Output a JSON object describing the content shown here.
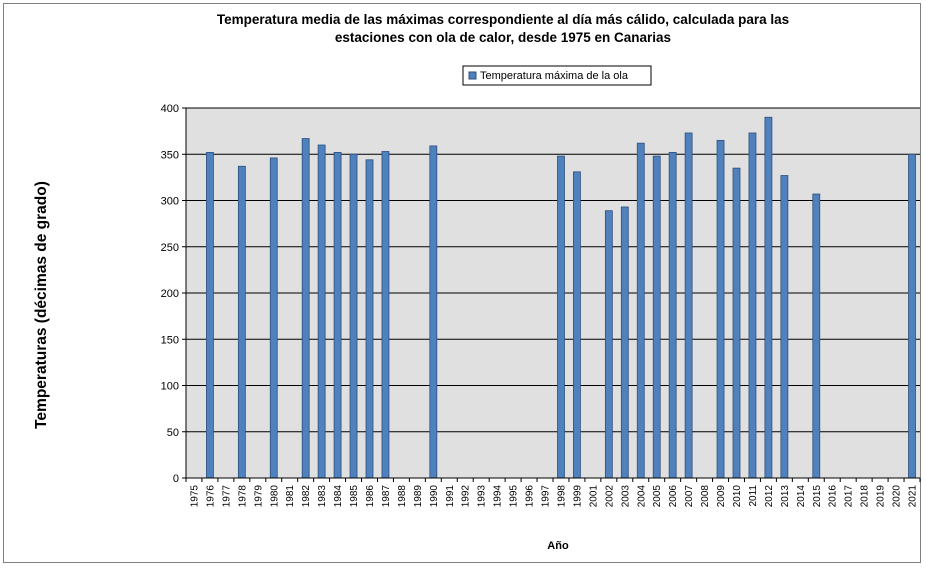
{
  "chart_data": {
    "type": "bar",
    "title_lines": [
      "Temperatura media de las máximas correspondiente al día más cálido, calculada para las",
      "estaciones con ola de calor, desde 1975 en Canarias"
    ],
    "xlabel": "Año",
    "ylabel": "Temperaturas (décimas de grado)",
    "ylim": [
      0,
      400
    ],
    "yticks": [
      0,
      50,
      100,
      150,
      200,
      250,
      300,
      350,
      400
    ],
    "grid": true,
    "legend_position": "top-center",
    "colors": {
      "bar_fill": "#4f81bd",
      "bar_stroke": "#2f4f7f",
      "plot_bg": "#e0e0e0",
      "grid": "#000000"
    },
    "categories": [
      "1975",
      "1976",
      "1977",
      "1978",
      "1979",
      "1980",
      "1981",
      "1982",
      "1983",
      "1984",
      "1985",
      "1986",
      "1987",
      "1988",
      "1989",
      "1990",
      "1991",
      "1992",
      "1993",
      "1994",
      "1995",
      "1996",
      "1997",
      "1998",
      "1999",
      "2001",
      "2002",
      "2003",
      "2004",
      "2005",
      "2006",
      "2007",
      "2008",
      "2009",
      "2010",
      "2011",
      "2012",
      "2013",
      "2014",
      "2015",
      "2016",
      "2017",
      "2018",
      "2019",
      "2020",
      "2021"
    ],
    "series": [
      {
        "name": "Temperatura máxima de la ola",
        "values": [
          null,
          352,
          null,
          337,
          null,
          346,
          null,
          367,
          360,
          352,
          350,
          344,
          353,
          null,
          null,
          359,
          null,
          null,
          null,
          null,
          null,
          null,
          null,
          348,
          331,
          null,
          289,
          293,
          362,
          348,
          352,
          373,
          null,
          365,
          335,
          373,
          390,
          327,
          null,
          307,
          null,
          null,
          null,
          null,
          null,
          350
        ]
      }
    ]
  }
}
